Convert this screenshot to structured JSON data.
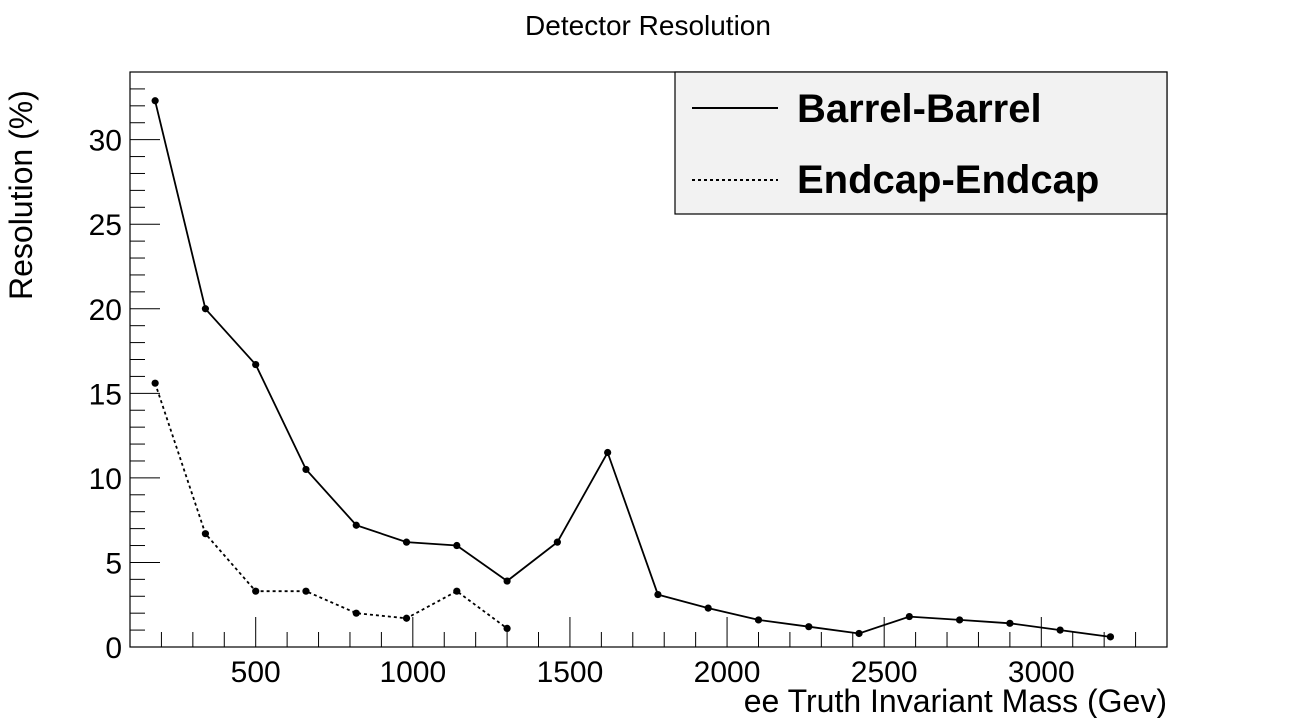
{
  "chart_data": {
    "type": "line",
    "title": "Detector Resolution",
    "xlabel": "ee Truth Invariant Mass (Gev)",
    "ylabel": "Resolution (%)",
    "xlim": [
      100,
      3400
    ],
    "ylim": [
      0,
      34
    ],
    "x_ticks": [
      500,
      1000,
      1500,
      2000,
      2500,
      3000
    ],
    "y_ticks": [
      0,
      5,
      10,
      15,
      20,
      25,
      30
    ],
    "grid": false,
    "legend_position": "top-right",
    "series": [
      {
        "name": "Barrel-Barrel",
        "line_style": "solid",
        "x": [
          180,
          340,
          500,
          660,
          820,
          980,
          1140,
          1300,
          1460,
          1620,
          1780,
          1940,
          2100,
          2260,
          2420,
          2580,
          2740,
          2900,
          3060,
          3220
        ],
        "y": [
          32.3,
          20.0,
          16.7,
          10.5,
          7.2,
          6.2,
          6.0,
          3.9,
          6.2,
          11.5,
          3.1,
          2.3,
          1.6,
          1.2,
          0.8,
          1.8,
          1.6,
          1.4,
          1.0,
          0.6
        ]
      },
      {
        "name": "Endcap-Endcap",
        "line_style": "dotted",
        "x": [
          180,
          340,
          500,
          660,
          820,
          980,
          1140,
          1300
        ],
        "y": [
          15.6,
          6.7,
          3.3,
          3.3,
          2.0,
          1.7,
          3.3,
          1.1
        ]
      }
    ]
  }
}
